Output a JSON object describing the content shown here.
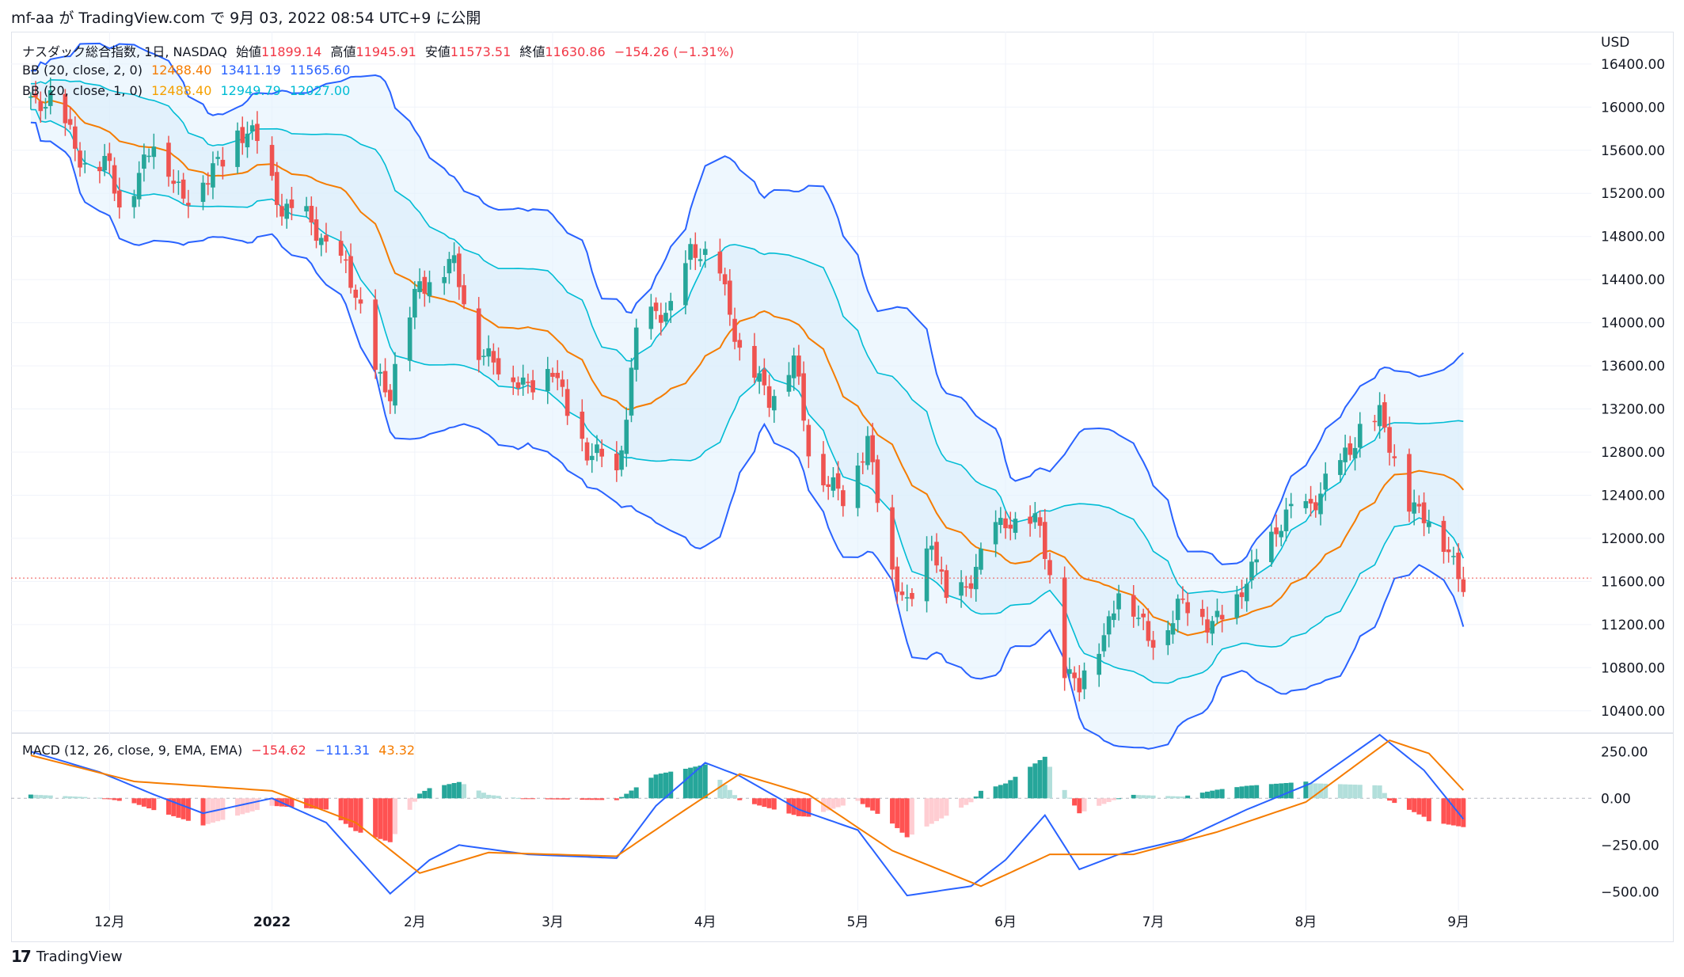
{
  "header": {
    "text": "mf-aa が TradingView.com で 9月 03, 2022 08:54 UTC+9 に公開"
  },
  "legend": {
    "symbol": "ナスダック総合指数, 1日, NASDAQ",
    "open_label": "始値",
    "open": "11899.14",
    "high_label": "高値",
    "high": "11945.91",
    "low_label": "安値",
    "low": "11573.51",
    "close_label": "終値",
    "close": "11630.86",
    "change": "−154.26 (−1.31%)",
    "bb1_label": "BB (20, close, 2, 0)",
    "bb1_mid": "12488.40",
    "bb1_up": "13411.19",
    "bb1_low": "11565.60",
    "bb2_label": "BB (20, close, 1, 0)",
    "bb2_mid": "12488.40",
    "bb2_up": "12949.79",
    "bb2_low": "12027.00",
    "macd_label": "MACD (12, 26, close, 9, EMA, EMA)",
    "macd_hist": "−154.62",
    "macd_line": "−111.31",
    "macd_signal": "43.32"
  },
  "footer": {
    "logo": "17",
    "brand": "TradingView"
  },
  "colors": {
    "up": "#26a69a",
    "down": "#ef5350",
    "bb_outer": "#2962ff",
    "bb_inner": "#00bcd4",
    "bb_mid": "#f57c00",
    "macd": "#2962ff",
    "signal": "#f57c00",
    "hist_pos_strong": "#26a69a",
    "hist_pos_weak": "#b2dfdb",
    "hist_neg_strong": "#ff5252",
    "hist_neg_weak": "#ffcdd2",
    "band_fill": "#e3f2fd"
  },
  "chart_data": [
    {
      "type": "candlestick",
      "currency": "USD",
      "ylim": [
        10200,
        16700
      ],
      "yticks": [
        10400,
        10800,
        11200,
        11600,
        12000,
        12400,
        12800,
        13200,
        13600,
        14000,
        14400,
        14800,
        15200,
        15600,
        16000,
        16400
      ],
      "ytick_labels": [
        "10400.00",
        "10800.00",
        "11200.00",
        "11600.00",
        "12000.00",
        "12400.00",
        "12800.00",
        "13200.00",
        "13600.00",
        "14000.00",
        "14400.00",
        "14800.00",
        "15200.00",
        "15600.00",
        "16000.00",
        "16400.00"
      ],
      "xtick_labels": [
        "12月",
        "2022",
        "2月",
        "3月",
        "4月",
        "5月",
        "6月",
        "7月",
        "8月",
        "9月"
      ],
      "xtick_dates": [
        "2021-12-01",
        "2022-01-03",
        "2022-02-01",
        "2022-03-01",
        "2022-04-01",
        "2022-05-02",
        "2022-06-01",
        "2022-07-01",
        "2022-08-01",
        "2022-09-01"
      ],
      "close_series": [
        [
          "2021-11-15",
          16100
        ],
        [
          "2021-11-19",
          16050
        ],
        [
          "2021-11-26",
          15500
        ],
        [
          "2021-12-01",
          15400
        ],
        [
          "2021-12-03",
          15080
        ],
        [
          "2021-12-10",
          15650
        ],
        [
          "2021-12-16",
          15200
        ],
        [
          "2021-12-21",
          15300
        ],
        [
          "2021-12-27",
          15800
        ],
        [
          "2021-12-31",
          15650
        ],
        [
          "2022-01-05",
          15100
        ],
        [
          "2022-01-11",
          14900
        ],
        [
          "2022-01-18",
          14500
        ],
        [
          "2022-01-24",
          13600
        ],
        [
          "2022-01-27",
          13350
        ],
        [
          "2022-02-02",
          14400
        ],
        [
          "2022-02-09",
          14500
        ],
        [
          "2022-02-14",
          13800
        ],
        [
          "2022-02-18",
          13550
        ],
        [
          "2022-02-24",
          13460
        ],
        [
          "2022-03-01",
          13530
        ],
        [
          "2022-03-08",
          12800
        ],
        [
          "2022-03-14",
          12580
        ],
        [
          "2022-03-18",
          13890
        ],
        [
          "2022-03-25",
          14170
        ],
        [
          "2022-03-29",
          14620
        ],
        [
          "2022-04-04",
          14530
        ],
        [
          "2022-04-08",
          13700
        ],
        [
          "2022-04-14",
          13350
        ],
        [
          "2022-04-19",
          13620
        ],
        [
          "2022-04-22",
          12840
        ],
        [
          "2022-04-29",
          12330
        ],
        [
          "2022-05-04",
          12960
        ],
        [
          "2022-05-09",
          11620
        ],
        [
          "2022-05-12",
          11370
        ],
        [
          "2022-05-17",
          11980
        ],
        [
          "2022-05-20",
          11350
        ],
        [
          "2022-05-26",
          11740
        ],
        [
          "2022-06-01",
          12180
        ],
        [
          "2022-06-08",
          12090
        ],
        [
          "2022-06-13",
          10810
        ],
        [
          "2022-06-16",
          10650
        ],
        [
          "2022-06-21",
          11070
        ],
        [
          "2022-06-24",
          11600
        ],
        [
          "2022-06-30",
          11030
        ],
        [
          "2022-07-06",
          11360
        ],
        [
          "2022-07-12",
          11260
        ],
        [
          "2022-07-18",
          11360
        ],
        [
          "2022-07-22",
          11830
        ],
        [
          "2022-07-28",
          12160
        ],
        [
          "2022-08-02",
          12350
        ],
        [
          "2022-08-08",
          12640
        ],
        [
          "2022-08-12",
          13050
        ],
        [
          "2022-08-16",
          13100
        ],
        [
          "2022-08-19",
          12700
        ],
        [
          "2022-08-22",
          12380
        ],
        [
          "2022-08-26",
          12140
        ],
        [
          "2022-08-30",
          11880
        ],
        [
          "2022-09-02",
          11630
        ]
      ]
    },
    {
      "type": "macd",
      "ylim": [
        -600,
        340
      ],
      "yticks": [
        250,
        0,
        -250,
        -500
      ],
      "ytick_labels": [
        "250.00",
        "0.00",
        "−250.00",
        "−500.00"
      ],
      "macd_series": [
        [
          "2021-11-15",
          250
        ],
        [
          "2021-11-29",
          140
        ],
        [
          "2021-12-10",
          20
        ],
        [
          "2021-12-20",
          -80
        ],
        [
          "2022-01-03",
          0
        ],
        [
          "2022-01-14",
          -130
        ],
        [
          "2022-01-27",
          -510
        ],
        [
          "2022-02-04",
          -330
        ],
        [
          "2022-02-10",
          -250
        ],
        [
          "2022-02-24",
          -300
        ],
        [
          "2022-03-14",
          -320
        ],
        [
          "2022-03-22",
          -40
        ],
        [
          "2022-04-01",
          190
        ],
        [
          "2022-04-08",
          120
        ],
        [
          "2022-04-20",
          -60
        ],
        [
          "2022-05-02",
          -170
        ],
        [
          "2022-05-12",
          -520
        ],
        [
          "2022-05-25",
          -470
        ],
        [
          "2022-06-01",
          -330
        ],
        [
          "2022-06-09",
          -90
        ],
        [
          "2022-06-16",
          -380
        ],
        [
          "2022-06-24",
          -300
        ],
        [
          "2022-07-07",
          -220
        ],
        [
          "2022-07-20",
          -60
        ],
        [
          "2022-08-02",
          80
        ],
        [
          "2022-08-16",
          340
        ],
        [
          "2022-08-25",
          150
        ],
        [
          "2022-09-02",
          -111
        ]
      ],
      "signal_series": [
        [
          "2021-11-15",
          230
        ],
        [
          "2021-12-06",
          90
        ],
        [
          "2022-01-03",
          40
        ],
        [
          "2022-01-20",
          -130
        ],
        [
          "2022-02-02",
          -400
        ],
        [
          "2022-02-16",
          -290
        ],
        [
          "2022-03-14",
          -310
        ],
        [
          "2022-03-28",
          -60
        ],
        [
          "2022-04-08",
          130
        ],
        [
          "2022-04-22",
          20
        ],
        [
          "2022-05-09",
          -280
        ],
        [
          "2022-05-27",
          -470
        ],
        [
          "2022-06-10",
          -300
        ],
        [
          "2022-06-27",
          -300
        ],
        [
          "2022-07-14",
          -180
        ],
        [
          "2022-08-01",
          -20
        ],
        [
          "2022-08-18",
          310
        ],
        [
          "2022-08-26",
          240
        ],
        [
          "2022-09-02",
          43
        ]
      ]
    }
  ]
}
